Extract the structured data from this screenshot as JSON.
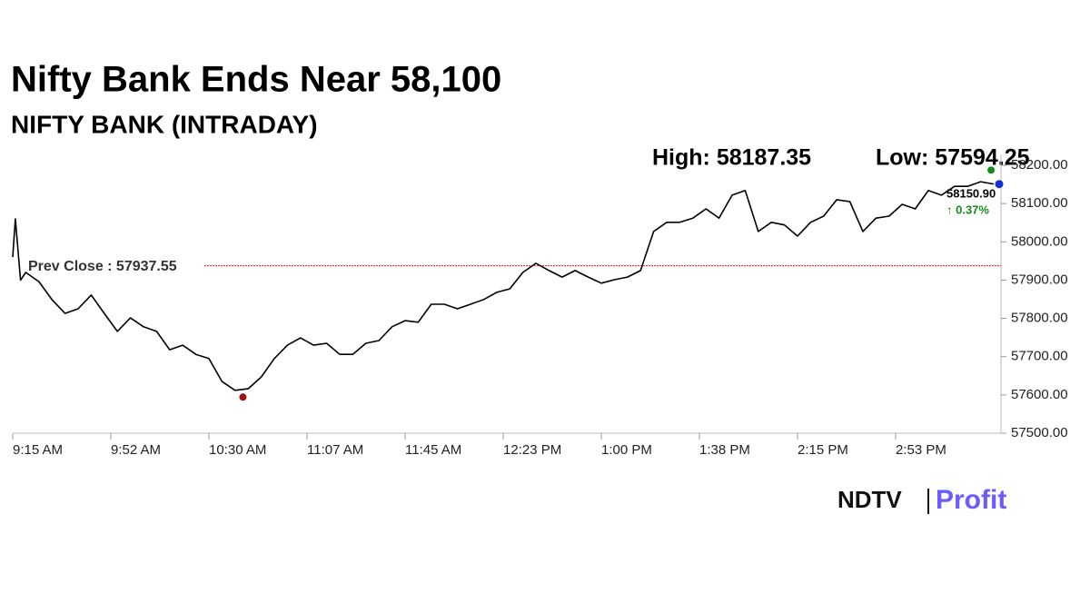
{
  "chart_data": {
    "type": "line",
    "title": "Nifty Bank Ends Near 58,100",
    "subtitle": "NIFTY BANK (INTRADAY)",
    "annotations": {
      "high": "High: 58187.35",
      "low": "Low: 57594.25",
      "prev_close": "Prev Close : 57937.55",
      "last": "58150.90",
      "change": "↑ 0.37%"
    },
    "prev_close": 57937.55,
    "high_point": {
      "x": 929,
      "y": 58187.35
    },
    "low_point": {
      "x": 643,
      "y": 57594.25
    },
    "last_point": {
      "x": 930,
      "y": 58150.9
    },
    "x": [
      555,
      556,
      558,
      560,
      565,
      570,
      575,
      580,
      585,
      590,
      595,
      600,
      605,
      610,
      615,
      620,
      625,
      630,
      635,
      640,
      645,
      650,
      655,
      660,
      665,
      670,
      675,
      680,
      685,
      690,
      695,
      700,
      705,
      710,
      715,
      720,
      725,
      730,
      735,
      740,
      745,
      750,
      755,
      760,
      765,
      770,
      775,
      780,
      785,
      790,
      795,
      800,
      805,
      810,
      815,
      820,
      825,
      830,
      835,
      840,
      845,
      850,
      855,
      860,
      865,
      870,
      875,
      880,
      885,
      890,
      895,
      900,
      905,
      910,
      915,
      920,
      925,
      930
    ],
    "series": [
      {
        "name": "NIFTY BANK",
        "color": "#000000",
        "values": [
          57960,
          58060,
          57900,
          57920,
          57896,
          57849,
          57813,
          57825,
          57861,
          57813,
          57766,
          57801,
          57778,
          57766,
          57718,
          57730,
          57706,
          57695,
          57635,
          57612,
          57616,
          57647,
          57695,
          57730,
          57749,
          57730,
          57735,
          57706,
          57706,
          57735,
          57742,
          57778,
          57794,
          57790,
          57837,
          57837,
          57825,
          57837,
          57849,
          57868,
          57877,
          57920,
          57944,
          57925,
          57908,
          57925,
          57908,
          57892,
          57901,
          57908,
          57925,
          58027,
          58051,
          58051,
          58062,
          58086,
          58062,
          58122,
          58134,
          58027,
          58051,
          58044,
          58015,
          58051,
          58067,
          58110,
          58105,
          58027,
          58062,
          58067,
          58098,
          58086,
          58134,
          58122,
          58145,
          58145,
          58157,
          58150.9
        ]
      }
    ],
    "xlim": [
      555,
      930
    ],
    "xticks": [
      {
        "value": 555,
        "label": "9:15 AM"
      },
      {
        "value": 592.5,
        "label": "9:52 AM"
      },
      {
        "value": 630,
        "label": "10:30 AM"
      },
      {
        "value": 667.5,
        "label": "11:07 AM"
      },
      {
        "value": 705,
        "label": "11:45 AM"
      },
      {
        "value": 742.5,
        "label": "12:23 PM"
      },
      {
        "value": 780,
        "label": "1:00 PM"
      },
      {
        "value": 817.5,
        "label": "1:38 PM"
      },
      {
        "value": 855,
        "label": "2:15 PM"
      },
      {
        "value": 892.5,
        "label": "2:53 PM"
      }
    ],
    "ylim": [
      57500,
      58200
    ],
    "yticks": [
      {
        "value": 57500,
        "label": "57500.00"
      },
      {
        "value": 57600,
        "label": "57600.00"
      },
      {
        "value": 57700,
        "label": "57700.00"
      },
      {
        "value": 57800,
        "label": "57800.00"
      },
      {
        "value": 57900,
        "label": "57900.00"
      },
      {
        "value": 58000,
        "label": "58000.00"
      },
      {
        "value": 58100,
        "label": "58100.00"
      },
      {
        "value": 58200,
        "label": "58200.00"
      }
    ],
    "brand": [
      "NDTV",
      "Profit"
    ]
  }
}
